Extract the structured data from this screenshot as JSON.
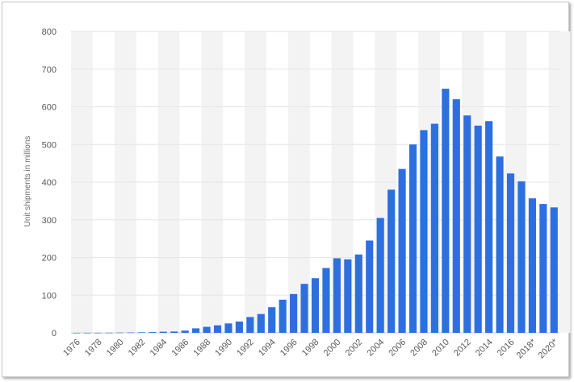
{
  "chart_data": {
    "type": "bar",
    "ylabel": "Unit shipments in millions",
    "ylim": [
      0,
      800
    ],
    "yticks": [
      0,
      100,
      200,
      300,
      400,
      500,
      600,
      700,
      800
    ],
    "grid": true,
    "bar_color": "#2e6fe0",
    "band_color": "#f3f3f3",
    "categories": [
      "1976",
      "1977",
      "1978",
      "1979",
      "1980",
      "1981",
      "1982",
      "1983",
      "1984",
      "1985",
      "1986",
      "1987",
      "1988",
      "1989",
      "1990",
      "1991",
      "1992",
      "1993",
      "1994",
      "1995",
      "1996",
      "1997",
      "1998",
      "1999",
      "2000",
      "2001",
      "2002",
      "2003",
      "2004",
      "2005",
      "2006",
      "2007",
      "2008",
      "2009",
      "2010",
      "2011",
      "2012",
      "2013",
      "2014",
      "2015",
      "2016",
      "2017",
      "2018*",
      "2019*",
      "2020*"
    ],
    "tick_labels": [
      "1976",
      "",
      "1978",
      "",
      "1980",
      "",
      "1982",
      "",
      "1984",
      "",
      "1986",
      "",
      "1988",
      "",
      "1990",
      "",
      "1992",
      "",
      "1994",
      "",
      "1996",
      "",
      "1998",
      "",
      "2000",
      "",
      "2002",
      "",
      "2004",
      "",
      "2006",
      "",
      "2008",
      "",
      "2010",
      "",
      "2012",
      "",
      "2014",
      "",
      "2016",
      "",
      "2018*",
      "",
      "2020*"
    ],
    "values": [
      0.05,
      0.1,
      0.2,
      0.4,
      0.7,
      1,
      1.5,
      2,
      3,
      3.5,
      6,
      12,
      16,
      20,
      25,
      30,
      42,
      50,
      68,
      88,
      103,
      130,
      145,
      172,
      198,
      195,
      208,
      245,
      305,
      380,
      435,
      500,
      538,
      555,
      648,
      620,
      577,
      550,
      562,
      468,
      423,
      402,
      357,
      342,
      333
    ]
  }
}
